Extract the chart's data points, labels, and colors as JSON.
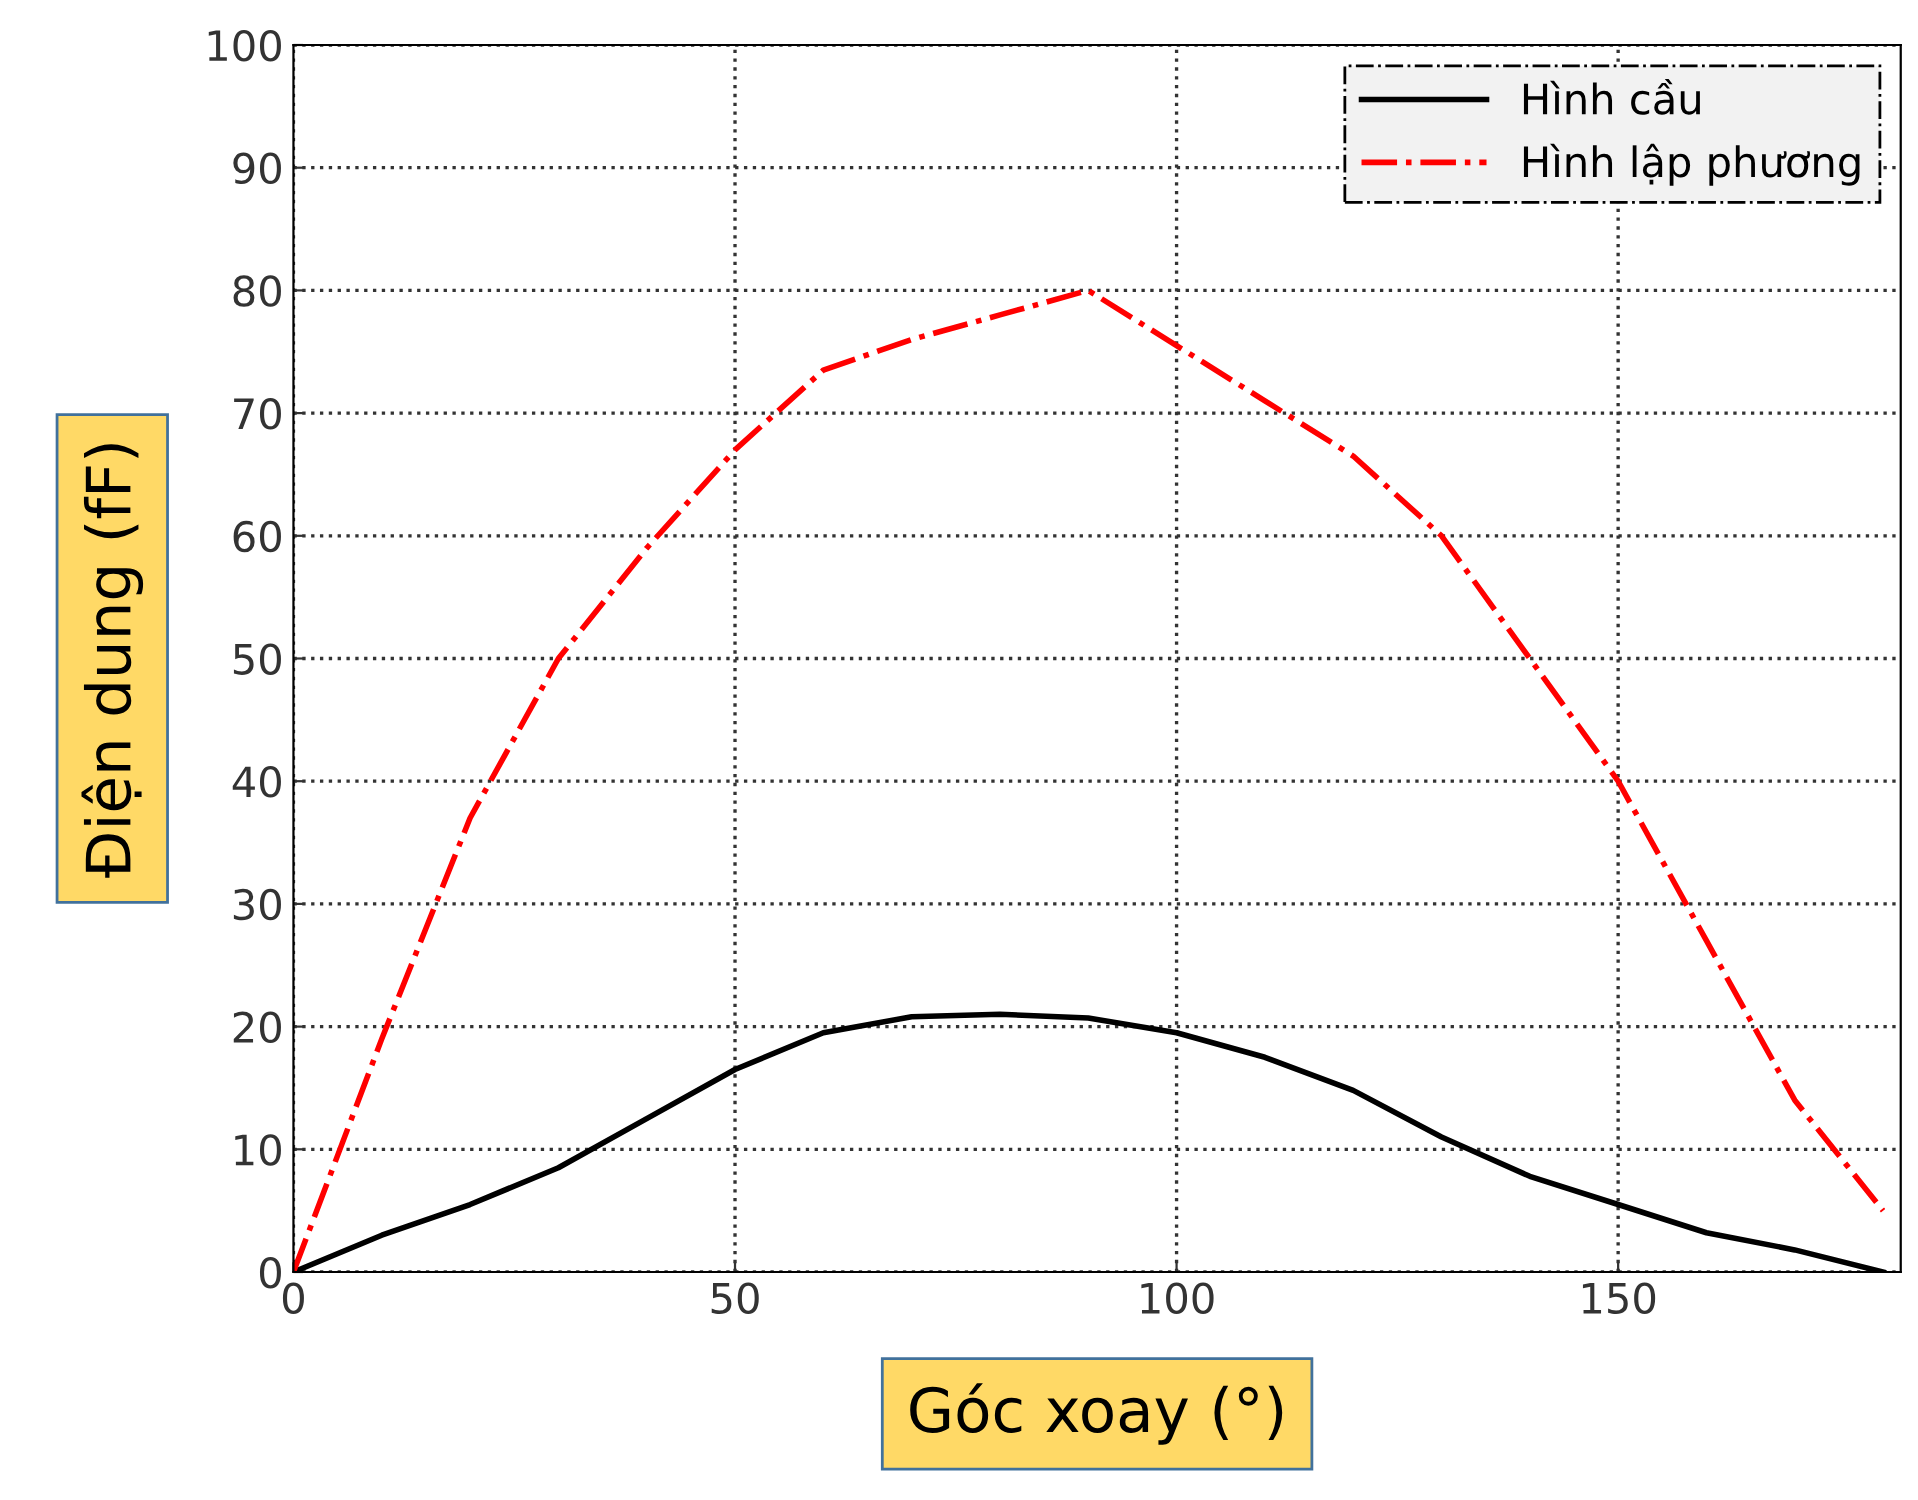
{
  "chart_data": {
    "type": "line",
    "xlabel": "Góc xoay (°)",
    "ylabel": "Điện dung (fF)",
    "x": [
      0,
      10,
      20,
      30,
      40,
      50,
      60,
      70,
      80,
      90,
      100,
      110,
      120,
      130,
      140,
      150,
      160,
      170,
      180
    ],
    "series": [
      {
        "name": "Hình cầu",
        "color": "#000000",
        "line_style": "solid",
        "values": [
          0,
          3,
          5.5,
          8.5,
          12.5,
          16.5,
          19.5,
          20.8,
          21,
          20.7,
          19.5,
          17.5,
          14.8,
          11,
          7.8,
          5.5,
          3.2,
          1.8,
          0
        ]
      },
      {
        "name": "Hình lập phương",
        "color": "#ff0000",
        "line_style": "dashdot",
        "values": [
          0,
          19,
          37,
          50,
          59,
          67,
          73.5,
          76,
          78,
          80,
          75.5,
          71,
          66.5,
          60,
          50,
          40,
          27,
          14,
          5
        ]
      }
    ],
    "xlim": [
      0,
      182
    ],
    "xticks": [
      0,
      50,
      100,
      150
    ],
    "ylim": [
      0,
      100
    ],
    "yticks": [
      0,
      10,
      20,
      30,
      40,
      50,
      60,
      70,
      80,
      90,
      100
    ],
    "grid": true,
    "legend": "top right",
    "marker": "none"
  }
}
